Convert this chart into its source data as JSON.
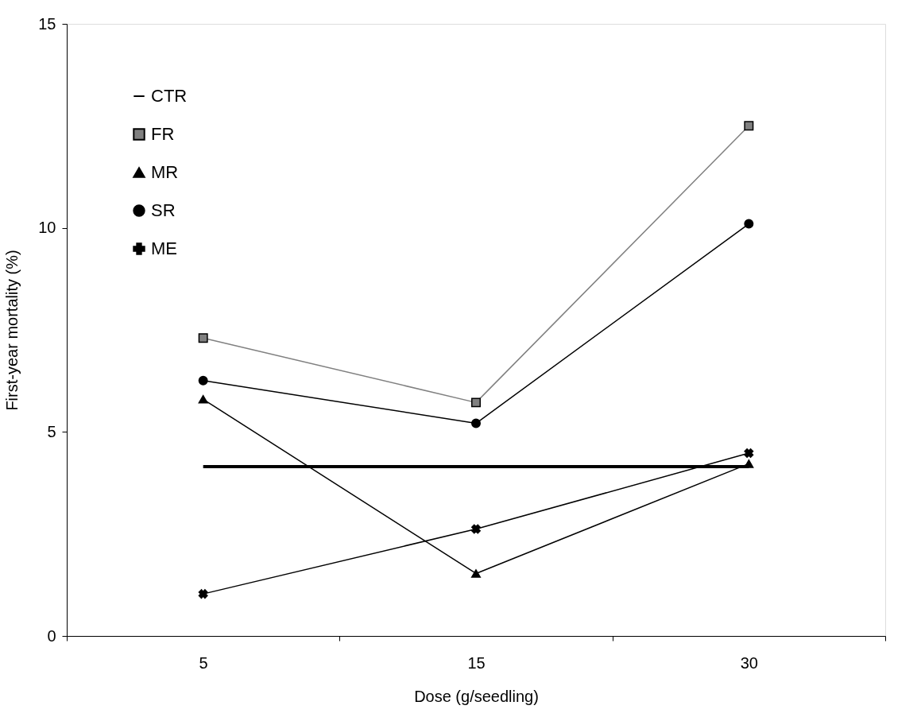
{
  "chart_data": {
    "type": "line",
    "xlabel": "Dose (g/seedling)",
    "ylabel": "First-year mortality (%)",
    "categories": [
      "5",
      "15",
      "30"
    ],
    "ylim": [
      0,
      15
    ],
    "yticks": [
      0,
      5,
      10,
      15
    ],
    "grid": false,
    "legend": "top left",
    "series": [
      {
        "name": "CTR",
        "color": "#000000",
        "marker": "none",
        "values": [
          4.15,
          4.15,
          4.15
        ]
      },
      {
        "name": "FR",
        "color": "#808080",
        "marker": "square",
        "values": [
          7.3,
          5.72,
          12.5
        ]
      },
      {
        "name": "MR",
        "color": "#000000",
        "marker": "triangle",
        "values": [
          5.8,
          1.53,
          4.22
        ]
      },
      {
        "name": "SR",
        "color": "#000000",
        "marker": "circle",
        "values": [
          6.26,
          5.21,
          10.1
        ]
      },
      {
        "name": "ME",
        "color": "#000000",
        "marker": "cross",
        "values": [
          1.03,
          2.62,
          4.48
        ]
      }
    ]
  }
}
